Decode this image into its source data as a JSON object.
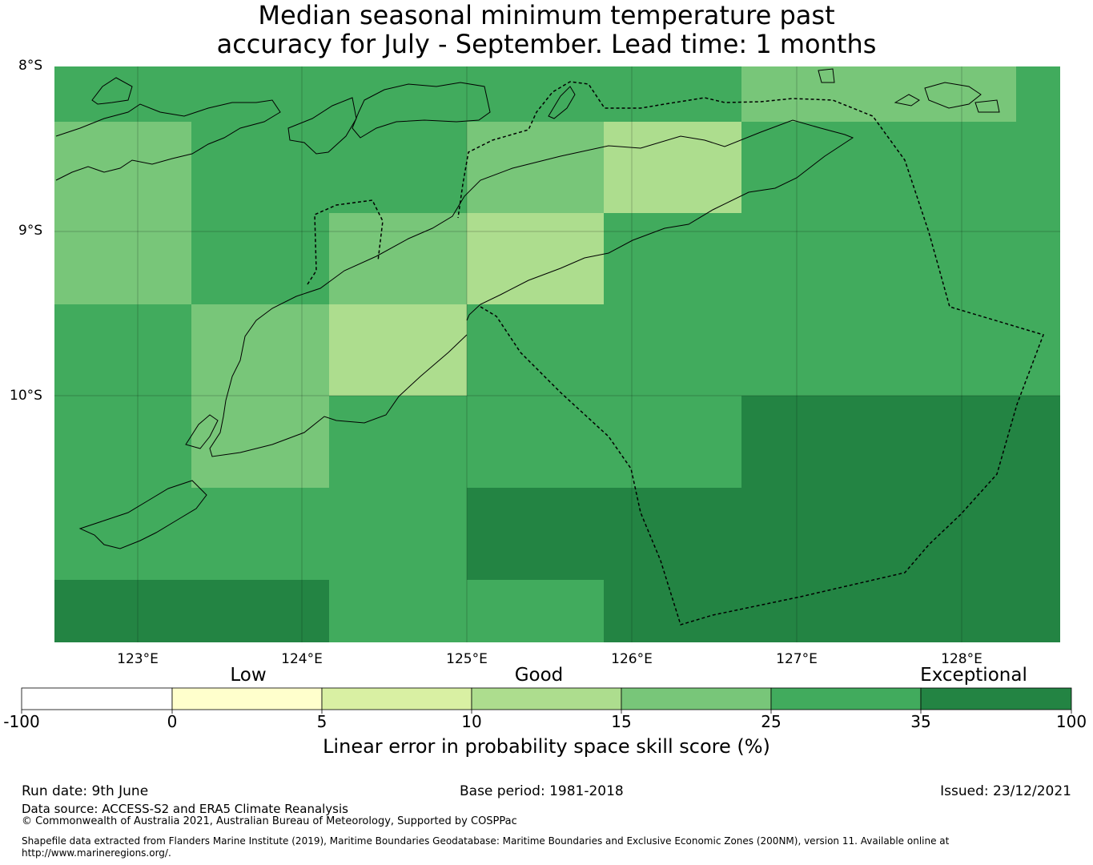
{
  "title": {
    "line1": "Median seasonal minimum temperature past",
    "line2": "accuracy for July - September. Lead time: 1 months"
  },
  "map": {
    "lat_range": [
      -11.5,
      -8
    ],
    "lon_range": [
      122.5,
      128.6
    ],
    "lat_labels": [
      "8°S",
      "9°S",
      "10°S"
    ],
    "lon_labels": [
      "123°E",
      "124°E",
      "125°E",
      "126°E",
      "127°E",
      "128°E"
    ],
    "grid": true
  },
  "colorbar": {
    "category_labels": [
      "Low",
      "Good",
      "Exceptional"
    ],
    "tick_labels": [
      "-100",
      "0",
      "5",
      "10",
      "15",
      "25",
      "35",
      "100"
    ],
    "bins": [
      {
        "range": [
          -100,
          0
        ],
        "color": "#ffffff"
      },
      {
        "range": [
          0,
          5
        ],
        "color": "#ffffcc"
      },
      {
        "range": [
          5,
          10
        ],
        "color": "#d9f0a3"
      },
      {
        "range": [
          10,
          15
        ],
        "color": "#addd8e"
      },
      {
        "range": [
          15,
          25
        ],
        "color": "#78c679"
      },
      {
        "range": [
          25,
          35
        ],
        "color": "#41ab5d"
      },
      {
        "range": [
          35,
          100
        ],
        "color": "#238443"
      }
    ],
    "axis_title": "Linear error in probability space skill score (%)"
  },
  "footer": {
    "run_date": "Run date: 9th June",
    "base_period": "Base period: 1981-2018",
    "issued": "Issued: 23/12/2021",
    "data_source": "Data source: ACCESS-S2 and ERA5 Climate Reanalysis",
    "copyright": "© Commonwealth of Australia 2021, Australian Bureau of Meteorology, Supported by COSPPac",
    "shapefile_line1": "Shapefile data extracted from Flanders Marine Institute (2019), Maritime Boundaries Geodatabase: Maritime Boundaries and Exclusive Economic Zones (200NM), version 11. Available online at",
    "shapefile_line2": "http://www.marineregions.org/."
  },
  "chart_data": {
    "type": "heatmap",
    "value_levels": {
      "light_green": "10-15",
      "medium_green": "15-25",
      "green": "25-35",
      "dark_green": "35-100"
    },
    "cells": [
      {
        "lon": [
          122.5,
          124.17
        ],
        "lat": [
          -8.33,
          -8.0
        ],
        "bin": "25-35"
      },
      {
        "lon": [
          124.17,
          125.0
        ],
        "lat": [
          -8.33,
          -8.0
        ],
        "bin": "25-35"
      },
      {
        "lon": [
          125.0,
          125.83
        ],
        "lat": [
          -8.33,
          -8.0
        ],
        "bin": "25-35"
      },
      {
        "lon": [
          125.83,
          126.67
        ],
        "lat": [
          -8.33,
          -8.0
        ],
        "bin": "25-35"
      },
      {
        "lon": [
          126.67,
          128.33
        ],
        "lat": [
          -8.33,
          -8.0
        ],
        "bin": "15-25"
      },
      {
        "lon": [
          128.33,
          128.6
        ],
        "lat": [
          -8.33,
          -8.0
        ],
        "bin": "25-35"
      },
      {
        "lon": [
          122.5,
          123.33
        ],
        "lat": [
          -9.42,
          -8.33
        ],
        "bin": "15-25"
      },
      {
        "lon": [
          123.33,
          125.0
        ],
        "lat": [
          -8.83,
          -8.33
        ],
        "bin": "25-35"
      },
      {
        "lon": [
          125.0,
          125.83
        ],
        "lat": [
          -8.83,
          -8.33
        ],
        "bin": "15-25"
      },
      {
        "lon": [
          125.83,
          126.67
        ],
        "lat": [
          -8.83,
          -8.33
        ],
        "bin": "10-15"
      },
      {
        "lon": [
          126.67,
          128.6
        ],
        "lat": [
          -9.42,
          -8.33
        ],
        "bin": "25-35"
      },
      {
        "lon": [
          123.33,
          124.17
        ],
        "lat": [
          -9.42,
          -8.83
        ],
        "bin": "25-35"
      },
      {
        "lon": [
          124.17,
          125.0
        ],
        "lat": [
          -9.42,
          -8.83
        ],
        "bin": "15-25"
      },
      {
        "lon": [
          125.0,
          125.83
        ],
        "lat": [
          -9.42,
          -8.83
        ],
        "bin": "10-15"
      },
      {
        "lon": [
          125.83,
          126.67
        ],
        "lat": [
          -9.42,
          -8.83
        ],
        "bin": "25-35"
      },
      {
        "lon": [
          122.5,
          123.33
        ],
        "lat": [
          -10.5,
          -9.42
        ],
        "bin": "25-35"
      },
      {
        "lon": [
          123.33,
          124.17
        ],
        "lat": [
          -10.5,
          -9.42
        ],
        "bin": "15-25"
      },
      {
        "lon": [
          124.17,
          125.0
        ],
        "lat": [
          -10.0,
          -9.42
        ],
        "bin": "10-15"
      },
      {
        "lon": [
          124.17,
          125.0
        ],
        "lat": [
          -10.5,
          -10.0
        ],
        "bin": "25-35"
      },
      {
        "lon": [
          125.0,
          128.6
        ],
        "lat": [
          -10.0,
          -9.42
        ],
        "bin": "25-35"
      },
      {
        "lon": [
          125.0,
          126.67
        ],
        "lat": [
          -10.5,
          -10.0
        ],
        "bin": "25-35"
      },
      {
        "lon": [
          126.67,
          128.6
        ],
        "lat": [
          -10.5,
          -10.0
        ],
        "bin": "35-100"
      },
      {
        "lon": [
          122.5,
          124.17
        ],
        "lat": [
          -11.08,
          -10.5
        ],
        "bin": "25-35"
      },
      {
        "lon": [
          124.17,
          125.0
        ],
        "lat": [
          -11.5,
          -10.5
        ],
        "bin": "25-35"
      },
      {
        "lon": [
          125.0,
          128.6
        ],
        "lat": [
          -11.08,
          -10.5
        ],
        "bin": "35-100"
      },
      {
        "lon": [
          122.5,
          124.17
        ],
        "lat": [
          -11.5,
          -11.08
        ],
        "bin": "35-100"
      },
      {
        "lon": [
          125.0,
          125.83
        ],
        "lat": [
          -11.5,
          -11.08
        ],
        "bin": "25-35"
      },
      {
        "lon": [
          125.83,
          128.6
        ],
        "lat": [
          -11.5,
          -11.08
        ],
        "bin": "35-100"
      }
    ]
  }
}
